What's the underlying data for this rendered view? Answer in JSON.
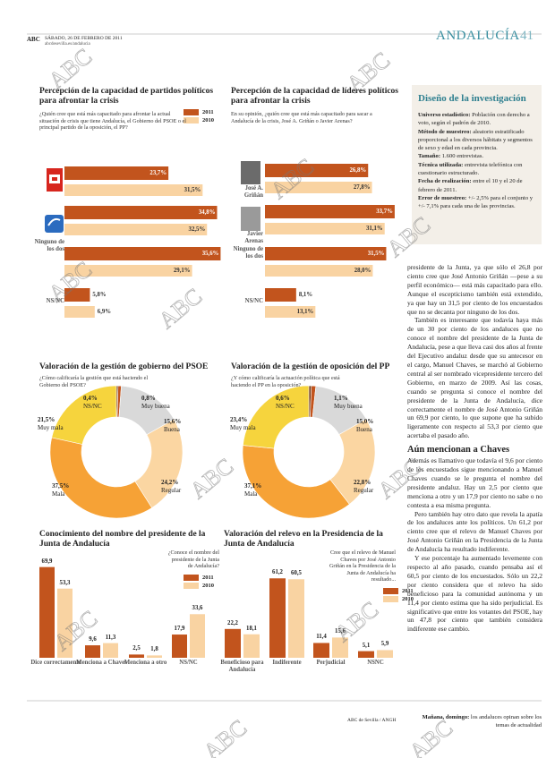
{
  "header": {
    "section": "ABC",
    "date": "SÁBADO, 26 DE FEBRERO DE 2011",
    "url": "abcdesevilla.es/andalucia",
    "title": "ANDALUCÍA",
    "page": "41"
  },
  "watermark": "ABC",
  "chart_data": [
    {
      "type": "hbar",
      "title": "Percepción de la capacidad de partidos políticos para afrontar la crisis",
      "subtitle": "¿Quién cree que está más capacitado para afrontar la actual situación de crisis que tiene Andalucía, el Gobierno del PSOE o el principal partido de la oposición, el PP?",
      "categories": [
        null,
        null,
        "Ninguno de los dos",
        "NS/NC"
      ],
      "series": [
        {
          "name": "2011",
          "color": "#c2541d",
          "values": [
            23.7,
            34.8,
            35.6,
            5.8
          ],
          "value_labels": [
            "23,7%",
            "34,8%",
            "35,6%",
            "5,8%"
          ]
        },
        {
          "name": "2010",
          "color": "#f9d3a2",
          "values": [
            31.5,
            32.5,
            29.1,
            6.9
          ],
          "value_labels": [
            "31,5%",
            "32,5%",
            "29,1%",
            "6,9%"
          ]
        }
      ]
    },
    {
      "type": "hbar",
      "title": "Percepción de la capacidad de líderes políticos para afrontar la crisis",
      "subtitle": "En su opinión, ¿quién cree que está más capacitado para sacar a Andalucía de la crisis, José A. Griñán o Javier Arenas?",
      "categories": [
        "José A. Griñán",
        "Javier Arenas",
        "Ninguno de los dos",
        "NS/NC"
      ],
      "series": [
        {
          "color": "#c2541d",
          "values": [
            26.8,
            33.7,
            31.5,
            8.1
          ],
          "value_labels": [
            "26,8%",
            "33,7%",
            "31,5%",
            "8,1%"
          ]
        },
        {
          "color": "#f9d3a2",
          "values": [
            27.8,
            31.1,
            28.0,
            13.1
          ],
          "value_labels": [
            "27,8%",
            "31,1%",
            "28,0%",
            "13,1%"
          ]
        }
      ]
    },
    {
      "type": "donut",
      "title": "Valoración de la gestión de gobierno del PSOE",
      "subtitle": "¿Cómo calificaría la gestión que está haciendo el Gobierno del PSOE?",
      "categories": [
        "NS/NC",
        "Muy buena",
        "Buena",
        "Regular",
        "Mala",
        "Muy mala"
      ],
      "values": [
        0.4,
        0.8,
        15.6,
        24.2,
        37.5,
        21.5
      ],
      "value_labels": [
        "0,4%",
        "0,8%",
        "15,6%",
        "24,2%",
        "37,5%",
        "21,5%"
      ],
      "colors": [
        "#6e3511",
        "#c2541d",
        "#d9d9d9",
        "#fbd6a2",
        "#f6a236",
        "#f6d43d"
      ]
    },
    {
      "type": "donut",
      "title": "Valoración de la gestión de oposición del PP",
      "subtitle": "¿Y cómo calificaría la actuación política que está haciendo el PP en la oposición?",
      "categories": [
        "NS/NC",
        "Muy buena",
        "Buena",
        "Regular",
        "Mala",
        "Muy mala"
      ],
      "values": [
        0.6,
        1.1,
        15.0,
        22.8,
        37.1,
        23.4
      ],
      "value_labels": [
        "0,6%",
        "1,1%",
        "15,0%",
        "22,8%",
        "37,1%",
        "23,4%"
      ],
      "colors": [
        "#6e3511",
        "#c2541d",
        "#d9d9d9",
        "#fbd6a2",
        "#f6a236",
        "#f6d43d"
      ]
    },
    {
      "type": "vbar",
      "title": "Conocimiento del nombre del presidente de la Junta de Andalucía",
      "subtitle": "¿Conoce el nombre del presidente de la Junta de Andalucía?",
      "categories": [
        "Dice correctamente",
        "Menciona a Chaves",
        "Menciona a otro",
        "NS/NC"
      ],
      "series": [
        {
          "name": "2011",
          "color": "#c2541d",
          "values": [
            69.9,
            9.6,
            2.5,
            17.9
          ],
          "value_labels": [
            "69,9",
            "9,6",
            "2,5",
            "17,9"
          ]
        },
        {
          "name": "2010",
          "color": "#f9d3a2",
          "values": [
            53.3,
            11.3,
            1.8,
            33.6
          ],
          "value_labels": [
            "53,3",
            "11,3",
            "1,8",
            "33,6"
          ]
        }
      ]
    },
    {
      "type": "vbar",
      "title": "Valoración del relevo en la Presidencia de la Junta de Andalucía",
      "subtitle": "Cree que el relevo de Manuel Chaves por José Antonio Griñán en la Presidencia de la Junta de Andalucía ha resultado...",
      "categories": [
        "Beneficioso para Andalucía",
        "Indiferente",
        "Perjudicial",
        "NSNC"
      ],
      "series": [
        {
          "name": "2011",
          "color": "#c2541d",
          "values": [
            22.2,
            61.2,
            11.4,
            5.1
          ],
          "value_labels": [
            "22,2",
            "61,2",
            "11,4",
            "5,1"
          ]
        },
        {
          "name": "2010",
          "color": "#f9d3a2",
          "values": [
            18.1,
            60.5,
            15.6,
            5.9
          ],
          "value_labels": [
            "18,1",
            "60,5",
            "15,6",
            "5,9"
          ]
        }
      ]
    }
  ],
  "sidebar": {
    "title": "Diseño de la investigación",
    "items": [
      {
        "label": "Universo estadístico:",
        "text": "Población con derecho a voto, según el padrón de 2010."
      },
      {
        "label": "Método de muestreo:",
        "text": "aleatorio estratificado proporcional a los diversos hábitats y segmentos de sexo y edad en cada provincia."
      },
      {
        "label": "Tamaño:",
        "text": "1.600 entrevistas."
      },
      {
        "label": "Técnica utilizada:",
        "text": "entrevista telefónica con cuestionario estructurado."
      },
      {
        "label": "Fecha de realización:",
        "text": "entre el 10 y el 20 de febrero de 2011."
      },
      {
        "label": "Error de muestreo:",
        "text": "+/- 2,5% para el conjunto y +/- 7,1% para cada una de las provincias."
      }
    ]
  },
  "article": {
    "paragraphs_before": [
      "presidente de la Junta, ya que sólo el 26,8 por ciento cree que José Antonio Griñán —pese a su perfil económico— está más capacitado para ello. Aunque el escepticismo también está extendido, ya que hay un 31,5 por ciento de los encuestados que no se decanta por ninguno de los dos.",
      "También es interesante que todavía haya más de un 30 por ciento de los andaluces que no conoce el nombre del presidente de la Junta de Andalucía, pese a que lleva casi dos años al frente del Ejecutivo andaluz desde que su antecesor en el cargo, Manuel Chaves, se marchó al Gobierno central al ser nombrado vicepresidente tercero del Gobierno, en marzo de 2009. Así las cosas, cuando se pregunta si conoce el nombre del presidente de la Junta de Andalucía, dice correctamente el nombre de José Antonio Griñán un 69,9 por ciento, lo que supone que ha subido ligeramente con respecto al 53,3 por ciento que acertaba el pasado año."
    ],
    "heading": "Aún mencionan a Chaves",
    "paragraphs_after": [
      "Además es llamativo que todavía el 9,6 por ciento de los encuestados sigue mencionando a Manuel Chaves cuando se le pregunta el nombre del presidente andaluz. Hay un 2,5 por ciento que menciona a otro y un 17,9 por ciento no sabe o no contesta a esa misma pregunta.",
      "Pero también hay otro dato que revela la apatía de los andaluces ante los políticos. Un 61,2 por ciento cree que el relevo de Manuel Chaves por José Antonio Griñán en la Presidencia de la Junta de Andalucía ha resultado indiferente.",
      "Y ese porcentaje ha aumentado levemente con respecto al año pasado, cuando pensaba así el 60,5 por ciento de los encuestados. Sólo un 22,2 por ciento considera que el relevo ha sido beneficioso para la comunidad autónoma y un 11,4 por ciento estima que ha sido perjudicial. Es significativo que entre los votantes del PSOE, hay un 47,8 por ciento que también considera indiferente ese cambio."
    ]
  },
  "footer": {
    "credit": "ABC de Sevilla / ANGH",
    "next_label": "Mañana, domingo:",
    "next_text": "los andaluces opinan sobre los temas de actualidad"
  }
}
